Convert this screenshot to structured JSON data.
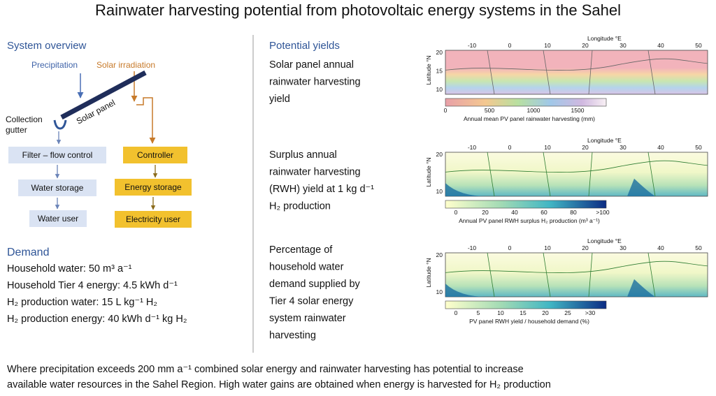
{
  "title": "Rainwater harvesting potential from photovoltaic energy systems in the Sahel",
  "system_overview": {
    "heading": "System overview",
    "precipitation": "Precipitation",
    "solar_irradiation": "Solar irradiation",
    "solar_panel": "Solar panel",
    "collection_gutter": [
      "Collection",
      "gutter"
    ],
    "water_chain": [
      "Filter – flow control",
      "Water storage",
      "Water user"
    ],
    "energy_chain": [
      "Controller",
      "Energy storage",
      "Electricity user"
    ]
  },
  "demand": {
    "heading": "Demand",
    "items": [
      "Household water: 50 m³ a⁻¹",
      "Household Tier 4 energy: 4.5 kWh d⁻¹",
      "H₂ production water: 15 L kg⁻¹ H₂",
      "H₂ production energy: 40 kWh d⁻¹ kg H₂"
    ]
  },
  "potential_yields": {
    "heading": "Potential yields",
    "panels": [
      {
        "description": [
          "Solar panel annual",
          "rainwater harvesting",
          "yield"
        ],
        "longitude_label": "Longitude °E",
        "latitude_label": "Latitude °N",
        "lon_ticks": [
          -10,
          0,
          10,
          20,
          30,
          40,
          50
        ],
        "lat_ticks": [
          20,
          15,
          10
        ],
        "colorbar_ticks": [
          0,
          500,
          1000,
          1500
        ],
        "colorbar_label": "Annual mean PV panel rainwater harvesting (mm)"
      },
      {
        "description": [
          "Surplus annual",
          "rainwater harvesting",
          "(RWH) yield at 1 kg d⁻¹",
          "H₂ production"
        ],
        "longitude_label": "Longitude °E",
        "latitude_label": "Latitude °N",
        "lon_ticks": [
          -10,
          0,
          10,
          20,
          30,
          40,
          50
        ],
        "lat_ticks": [
          20,
          10
        ],
        "colorbar_ticks": [
          0,
          20,
          40,
          60,
          80,
          ">100"
        ],
        "colorbar_label": "Annual PV panel RWH surplus H₂ production (m³ a⁻¹)"
      },
      {
        "description": [
          "Percentage of",
          "household water",
          "demand supplied by",
          "Tier 4 solar energy",
          "system rainwater",
          "harvesting"
        ],
        "longitude_label": "Longitude °E",
        "latitude_label": "Latitude °N",
        "lon_ticks": [
          -10,
          0,
          10,
          20,
          30,
          40,
          50
        ],
        "lat_ticks": [
          20,
          10
        ],
        "colorbar_ticks": [
          0,
          5,
          10,
          15,
          20,
          25,
          ">30"
        ],
        "colorbar_label": "PV panel RWH yield / household demand (%)"
      }
    ]
  },
  "conclusion": [
    "Where precipitation exceeds 200 mm a⁻¹ combined solar energy and rainwater harvesting has potential to increase",
    "available water resources in the Sahel Region. High water gains are obtained when energy is harvested for H₂ production"
  ]
}
